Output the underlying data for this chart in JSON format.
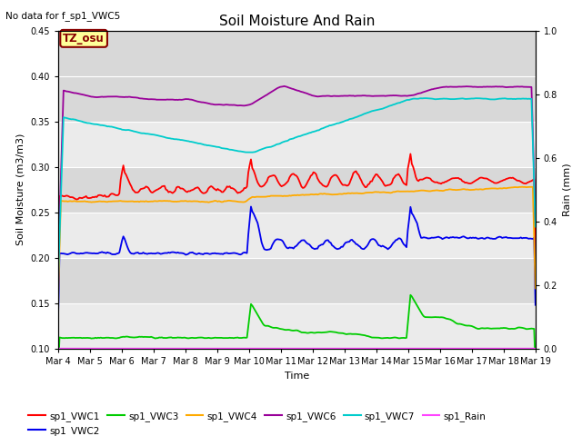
{
  "title": "Soil Moisture And Rain",
  "subtitle": "No data for f_sp1_VWC5",
  "xlabel": "Time",
  "ylabel_left": "Soil Moisture (m3/m3)",
  "ylabel_right": "Rain (mm)",
  "annotation": "TZ_osu",
  "ylim_left": [
    0.1,
    0.45
  ],
  "ylim_right": [
    0.0,
    1.0
  ],
  "xtick_labels": [
    "Mar 4",
    "Mar 5",
    "Mar 6",
    "Mar 7",
    "Mar 8",
    "Mar 9",
    "Mar 10",
    "Mar 11",
    "Mar 12",
    "Mar 13",
    "Mar 14",
    "Mar 15",
    "Mar 16",
    "Mar 17",
    "Mar 18",
    "Mar 19"
  ],
  "colors": {
    "sp1_VWC1": "#ff0000",
    "sp1_VWC2": "#0000ee",
    "sp1_VWC3": "#00cc00",
    "sp1_VWC4": "#ffaa00",
    "sp1_VWC6": "#990099",
    "sp1_VWC7": "#00cccc",
    "sp1_Rain": "#ff44ff"
  },
  "background_color": "#e8e8e8",
  "plot_bg": "#f0f0f0",
  "annotation_bg": "#ffff99",
  "annotation_fg": "#880000",
  "grid_color": "#ffffff",
  "figsize": [
    6.4,
    4.8
  ],
  "dpi": 100
}
